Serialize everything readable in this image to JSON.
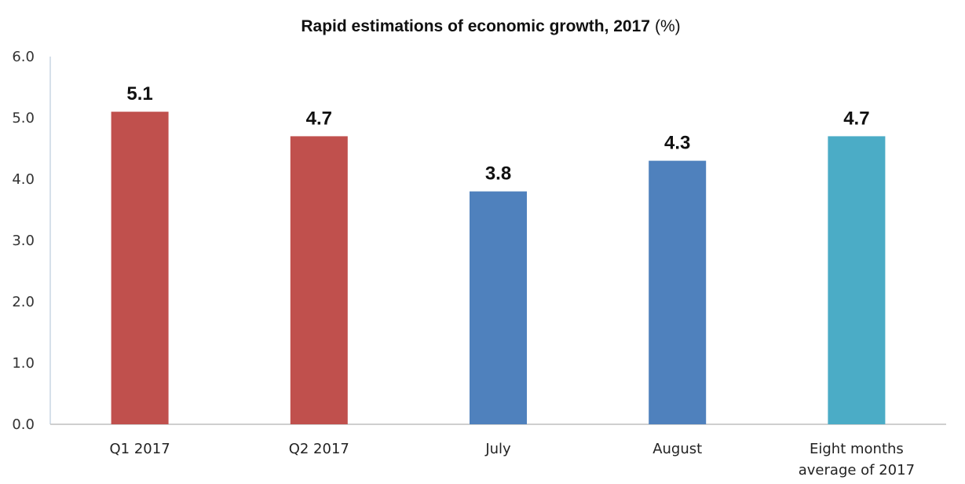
{
  "chart_data": {
    "type": "bar",
    "title": "Rapid estimations of economic growth, 2017",
    "title_unit": "(%)",
    "categories": [
      "Q1 2017",
      "Q2 2017",
      "July",
      "August",
      "Eight months average of 2017"
    ],
    "category_lines": [
      [
        "Q1 2017"
      ],
      [
        "Q2 2017"
      ],
      [
        "July"
      ],
      [
        "August"
      ],
      [
        "Eight months",
        "average of 2017"
      ]
    ],
    "values": [
      5.1,
      4.7,
      3.8,
      4.3,
      4.7
    ],
    "data_labels": [
      "5.1",
      "4.7",
      "3.8",
      "4.3",
      "4.7"
    ],
    "bar_colors": [
      "#c0504d",
      "#c0504d",
      "#4f81bd",
      "#4f81bd",
      "#4bacc6"
    ],
    "xlabel": "",
    "ylabel": "",
    "ylim": [
      0,
      6
    ],
    "yticks": [
      0,
      1,
      2,
      3,
      4,
      5,
      6
    ],
    "ytick_labels": [
      "0.0",
      "1.0",
      "2.0",
      "3.0",
      "4.0",
      "5.0",
      "6.0"
    ],
    "grid": false,
    "legend": "none"
  }
}
